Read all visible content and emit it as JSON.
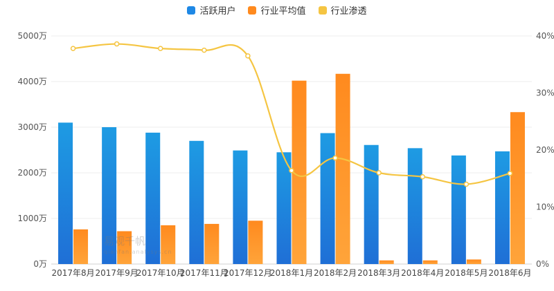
{
  "legend": {
    "series1": "活跃用户",
    "series2": "行业平均值",
    "series3": "行业渗透"
  },
  "watermark": {
    "main": "易观千帆",
    "sub": "qianfan.analysys.cn"
  },
  "colors": {
    "blue": "#1E88E5",
    "orange": "#FF8A1E",
    "yellow": "#F5C542"
  },
  "chart_data": {
    "type": "bar",
    "categories": [
      "2017年8月",
      "2017年9月",
      "2017年10月",
      "2017年11月",
      "2017年12月",
      "2018年1月",
      "2018年2月",
      "2018年3月",
      "2018年4月",
      "2018年5月",
      "2018年6月"
    ],
    "y_left": {
      "ticks": [
        "0万",
        "1000万",
        "2000万",
        "3000万",
        "4000万",
        "5000万"
      ],
      "ylim": [
        0,
        5000
      ]
    },
    "y_right": {
      "ticks": [
        "0%",
        "10%",
        "20%",
        "30%",
        "40%"
      ],
      "ylim": [
        0,
        40
      ]
    },
    "series": [
      {
        "name": "活跃用户",
        "type": "bar",
        "axis": "left",
        "values": [
          3100,
          3000,
          2880,
          2700,
          2490,
          2450,
          2870,
          2610,
          2540,
          2380,
          2470
        ]
      },
      {
        "name": "行业平均值",
        "type": "bar",
        "axis": "left",
        "values": [
          760,
          720,
          850,
          880,
          950,
          4020,
          4170,
          80,
          80,
          100,
          3330
        ]
      },
      {
        "name": "行业渗透",
        "type": "line",
        "axis": "right",
        "values": [
          37.8,
          38.6,
          37.8,
          37.5,
          36.5,
          16.4,
          18.6,
          16.0,
          15.3,
          14.0,
          15.9
        ]
      }
    ]
  }
}
